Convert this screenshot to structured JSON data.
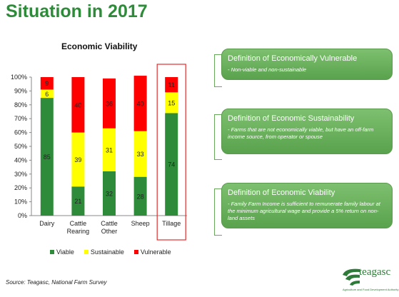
{
  "slide_title": "Situation in 2017",
  "source": "Source: Teagasc, National Farm Survey",
  "logo_text": "teagasc",
  "logo_subtext": "Agriculture and Food Development Authority",
  "definitions": [
    {
      "heading": "Definition of Economically Vulnerable",
      "text": "- Non-viable and non-sustainable"
    },
    {
      "heading": "Definition of Economic Sustainability",
      "text": "- Farms that are not economically viable, but have an off-farm income source, from operator or spouse"
    },
    {
      "heading": "Definition of Economic Viability",
      "text": "- Family Farm Income is sufficient to remunerate family labour at the minimum agricultural wage  and provide a 5% return on non-land assets"
    }
  ],
  "chart_data": {
    "type": "bar",
    "stacked": true,
    "title": "Economic Viability",
    "categories": [
      "Dairy",
      "Cattle\nRearing",
      "Cattle\nOther",
      "Sheep",
      "Tillage"
    ],
    "series": [
      {
        "name": "Viable",
        "color": "#2e8b3a",
        "values": [
          85,
          21,
          32,
          28,
          74
        ]
      },
      {
        "name": "Sustainable",
        "color": "#ffff00",
        "values": [
          6,
          39,
          31,
          33,
          15
        ]
      },
      {
        "name": "Vulnerable",
        "color": "#ff0000",
        "values": [
          9,
          40,
          36,
          40,
          11
        ]
      }
    ],
    "ylim": [
      0,
      100
    ],
    "yticks": [
      "0%",
      "10%",
      "20%",
      "30%",
      "40%",
      "50%",
      "60%",
      "70%",
      "80%",
      "90%",
      "100%"
    ],
    "highlighted_category": "Tillage",
    "legend_position": "bottom"
  }
}
